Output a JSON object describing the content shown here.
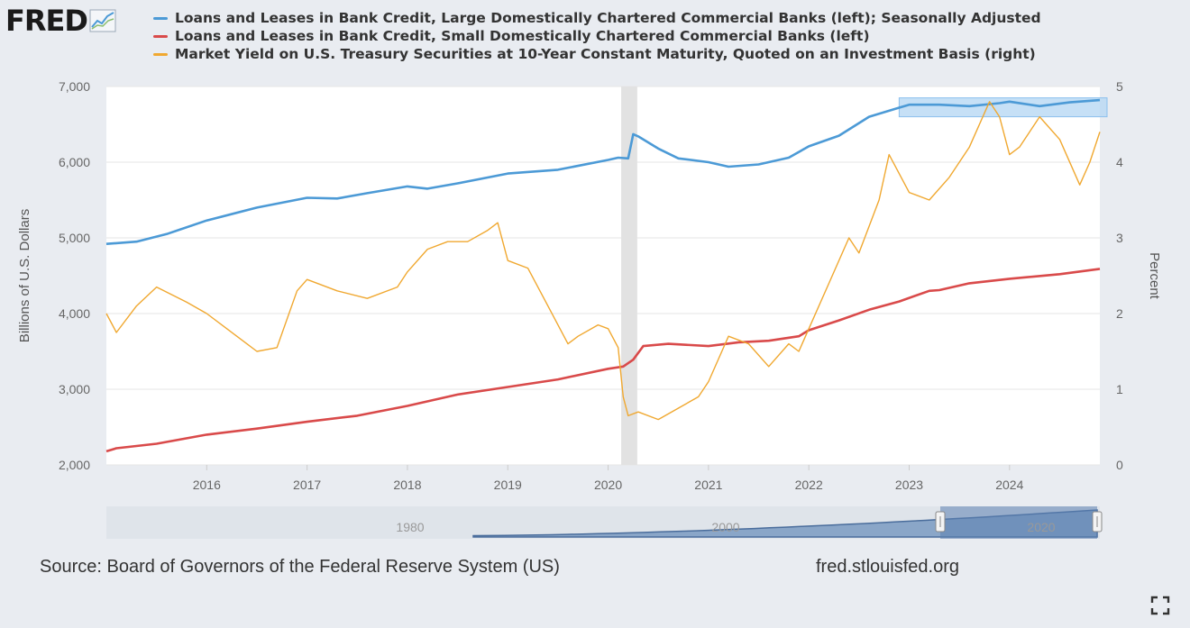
{
  "header": {
    "logo_text": "FRED"
  },
  "legend": [
    {
      "label": "Loans and Leases in Bank Credit, Large Domestically Chartered Commercial Banks (left); Seasonally Adjusted",
      "color": "#4c9ad6"
    },
    {
      "label": "Loans and Leases in Bank Credit, Small Domestically Chartered Commercial Banks (left)",
      "color": "#d94a4a"
    },
    {
      "label": "Market Yield on U.S. Treasury Securities at 10-Year Constant Maturity, Quoted on an Investment Basis (right)",
      "color": "#f0a830"
    }
  ],
  "chart_data": {
    "type": "line",
    "xlim": [
      2015.0,
      2024.9
    ],
    "x_ticks": [
      "2016",
      "2017",
      "2018",
      "2019",
      "2020",
      "2021",
      "2022",
      "2023",
      "2024"
    ],
    "y_left": {
      "label": "Billions of U.S. Dollars",
      "lim": [
        2000,
        7000
      ],
      "ticks": [
        "2,000",
        "3,000",
        "4,000",
        "5,000",
        "6,000",
        "7,000"
      ]
    },
    "y_right": {
      "label": "Percent",
      "lim": [
        0,
        5
      ],
      "ticks": [
        "0",
        "1",
        "2",
        "3",
        "4",
        "5"
      ]
    },
    "grid": true,
    "recession": [
      2020.13,
      2020.29
    ],
    "series": [
      {
        "name": "Loans and Leases in Bank Credit, Large Domestically Chartered Commercial Banks (left); Seasonally Adjusted",
        "axis": "left",
        "color": "#4c9ad6",
        "x": [
          2015.0,
          2015.3,
          2015.6,
          2016.0,
          2016.5,
          2017.0,
          2017.3,
          2017.6,
          2018.0,
          2018.2,
          2018.5,
          2019.0,
          2019.5,
          2020.0,
          2020.1,
          2020.2,
          2020.25,
          2020.3,
          2020.5,
          2020.7,
          2021.0,
          2021.2,
          2021.5,
          2021.8,
          2022.0,
          2022.3,
          2022.6,
          2022.9,
          2023.0,
          2023.3,
          2023.6,
          2023.9,
          2024.0,
          2024.3,
          2024.6,
          2024.9
        ],
        "values": [
          4920,
          4950,
          5050,
          5230,
          5400,
          5530,
          5520,
          5590,
          5680,
          5650,
          5720,
          5850,
          5900,
          6030,
          6060,
          6050,
          6370,
          6340,
          6180,
          6050,
          6000,
          5940,
          5970,
          6060,
          6210,
          6350,
          6600,
          6720,
          6760,
          6760,
          6740,
          6780,
          6800,
          6740,
          6790,
          6820
        ]
      },
      {
        "name": "Loans and Leases in Bank Credit, Small Domestically Chartered Commercial Banks (left)",
        "axis": "left",
        "color": "#d94a4a",
        "x": [
          2015.0,
          2015.1,
          2015.5,
          2016.0,
          2016.5,
          2017.0,
          2017.5,
          2018.0,
          2018.5,
          2019.0,
          2019.5,
          2020.0,
          2020.15,
          2020.25,
          2020.35,
          2020.6,
          2021.0,
          2021.3,
          2021.6,
          2021.9,
          2022.0,
          2022.3,
          2022.6,
          2022.9,
          2023.2,
          2023.3,
          2023.6,
          2024.0,
          2024.5,
          2024.9
        ],
        "values": [
          2180,
          2220,
          2280,
          2400,
          2480,
          2570,
          2650,
          2780,
          2930,
          3030,
          3130,
          3270,
          3300,
          3390,
          3570,
          3600,
          3570,
          3620,
          3640,
          3700,
          3780,
          3910,
          4050,
          4160,
          4300,
          4310,
          4400,
          4460,
          4520,
          4590
        ]
      },
      {
        "name": "Market Yield on U.S. Treasury Securities at 10-Year Constant Maturity, Quoted on an Investment Basis (right)",
        "axis": "right",
        "color": "#f0a830",
        "x": [
          2015.0,
          2015.1,
          2015.3,
          2015.5,
          2015.8,
          2016.0,
          2016.2,
          2016.5,
          2016.7,
          2016.9,
          2017.0,
          2017.3,
          2017.6,
          2017.9,
          2018.0,
          2018.2,
          2018.4,
          2018.6,
          2018.8,
          2018.9,
          2019.0,
          2019.2,
          2019.4,
          2019.6,
          2019.7,
          2019.9,
          2020.0,
          2020.1,
          2020.15,
          2020.2,
          2020.3,
          2020.5,
          2020.7,
          2020.9,
          2021.0,
          2021.1,
          2021.2,
          2021.4,
          2021.6,
          2021.8,
          2021.9,
          2022.0,
          2022.2,
          2022.4,
          2022.5,
          2022.7,
          2022.8,
          2023.0,
          2023.2,
          2023.4,
          2023.6,
          2023.8,
          2023.9,
          2024.0,
          2024.1,
          2024.3,
          2024.5,
          2024.7,
          2024.8,
          2024.9
        ],
        "values": [
          2.0,
          1.75,
          2.1,
          2.35,
          2.15,
          2.0,
          1.8,
          1.5,
          1.55,
          2.3,
          2.45,
          2.3,
          2.2,
          2.35,
          2.55,
          2.85,
          2.95,
          2.95,
          3.1,
          3.2,
          2.7,
          2.6,
          2.1,
          1.6,
          1.7,
          1.85,
          1.8,
          1.55,
          0.9,
          0.65,
          0.7,
          0.6,
          0.75,
          0.9,
          1.1,
          1.4,
          1.7,
          1.6,
          1.3,
          1.6,
          1.5,
          1.8,
          2.4,
          3.0,
          2.8,
          3.5,
          4.1,
          3.6,
          3.5,
          3.8,
          4.2,
          4.8,
          4.6,
          4.1,
          4.2,
          4.6,
          4.3,
          3.7,
          4.0,
          4.4
        ]
      }
    ]
  },
  "navigator": {
    "labels": [
      "1980",
      "2000",
      "2020"
    ]
  },
  "footer": {
    "source": "Source: Board of Governors of the Federal Reserve System (US)",
    "url": "fred.stlouisfed.org"
  }
}
